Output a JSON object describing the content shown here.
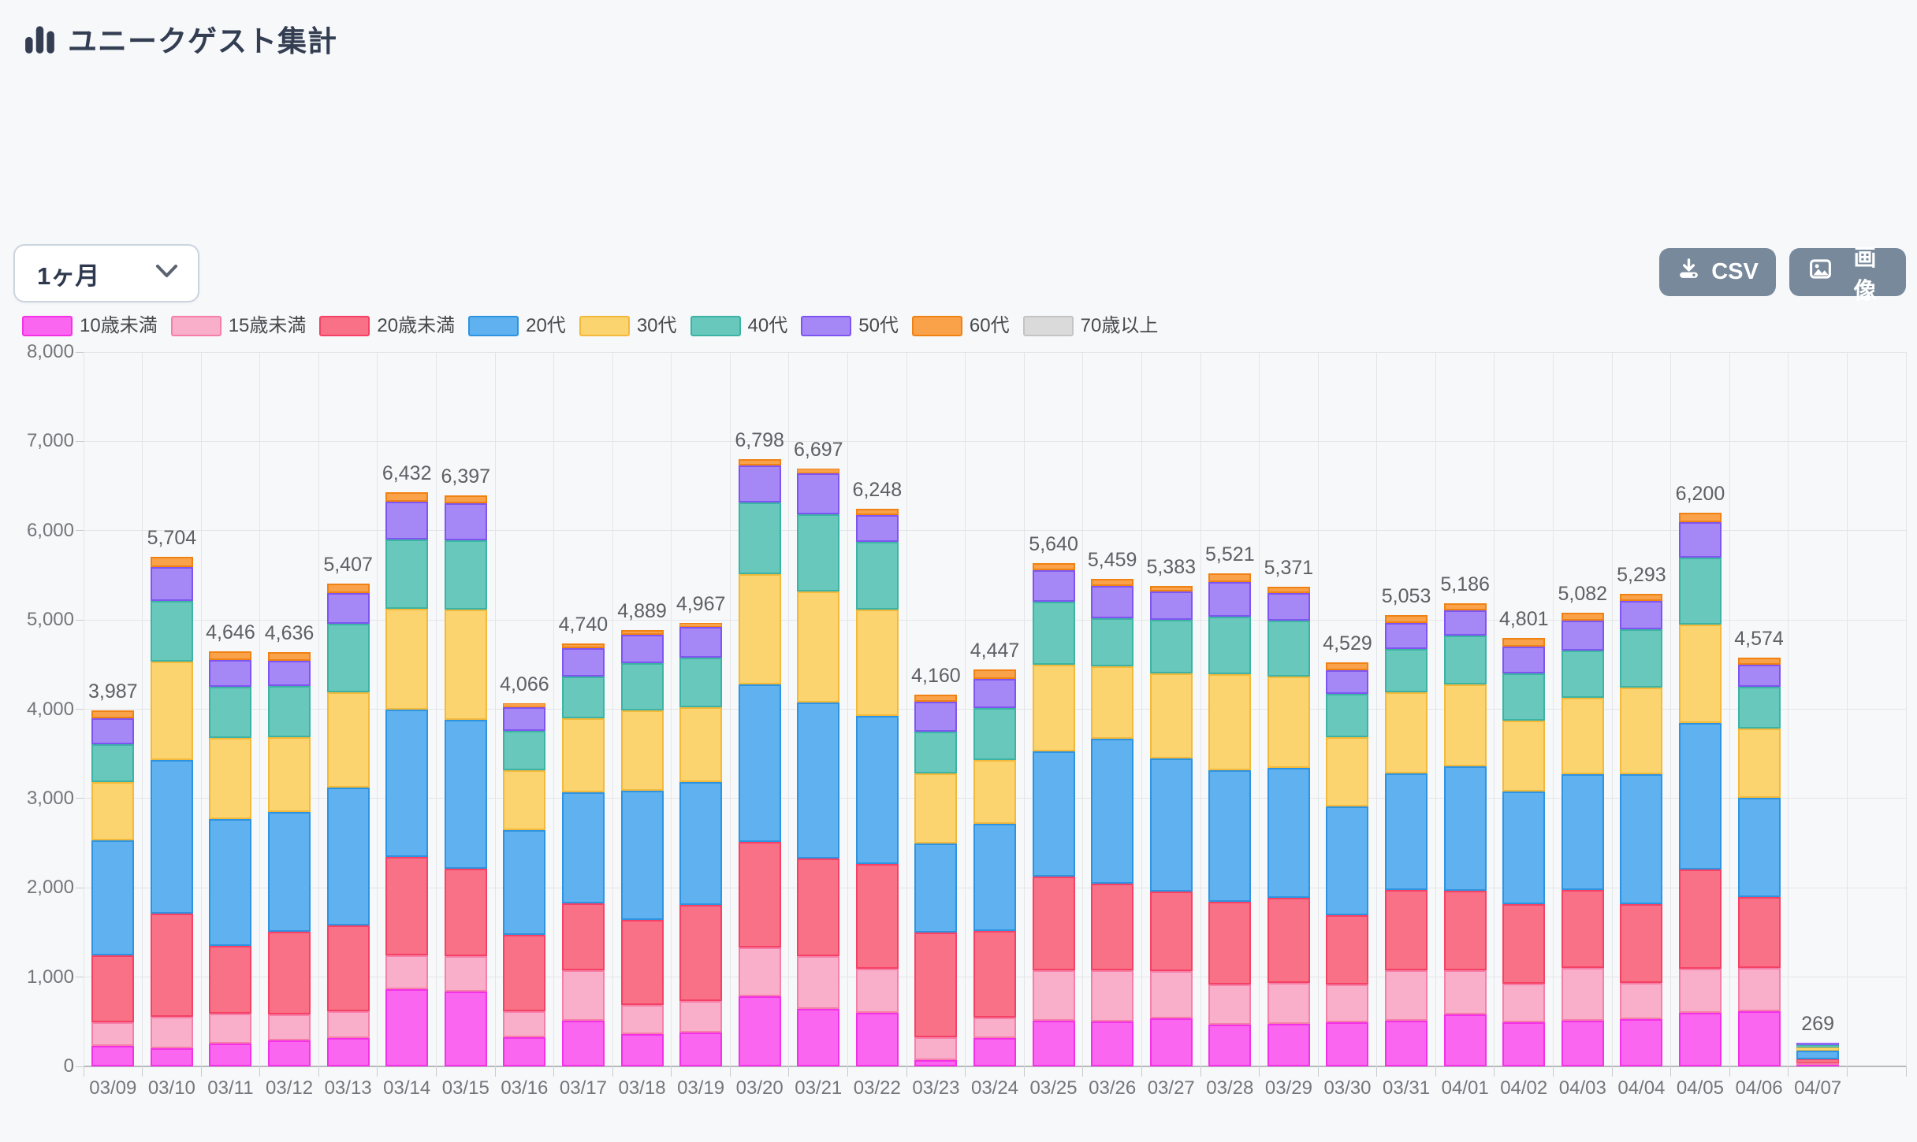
{
  "header": {
    "title": "ユニークゲスト集計"
  },
  "controls": {
    "period_select": {
      "value": "1ヶ月"
    },
    "csv_button": "CSV",
    "image_button": "画像"
  },
  "colors": {
    "page_background": "#f7f8fa",
    "button_background": "#77899b",
    "title_text": "#333e52",
    "gridline": "#e4e5e8",
    "axis_text": "#73767b"
  },
  "chart_data": {
    "type": "bar",
    "stacked": true,
    "grid": true,
    "legend_position": "top",
    "title": "ユニークゲスト集計",
    "xlabel": "",
    "ylabel": "",
    "y_axis": {
      "min": 0,
      "max": 8000,
      "step": 1000
    },
    "categories": [
      "03/09",
      "03/10",
      "03/11",
      "03/12",
      "03/13",
      "03/14",
      "03/15",
      "03/16",
      "03/17",
      "03/18",
      "03/19",
      "03/20",
      "03/21",
      "03/22",
      "03/23",
      "03/24",
      "03/25",
      "03/26",
      "03/27",
      "03/28",
      "03/29",
      "03/30",
      "03/31",
      "04/01",
      "04/02",
      "04/03",
      "04/04",
      "04/05",
      "04/06",
      "04/07"
    ],
    "totals": [
      3987,
      5704,
      4646,
      4636,
      5407,
      6432,
      6397,
      4066,
      4740,
      4889,
      4967,
      6798,
      6697,
      6248,
      4160,
      4447,
      5640,
      5459,
      5383,
      5521,
      5371,
      4529,
      5053,
      5186,
      4801,
      5082,
      5293,
      6200,
      4574,
      269
    ],
    "series": [
      {
        "name": "10歳未満",
        "fill": "#fb66f0",
        "border": "#f331e6",
        "values": [
          230,
          200,
          260,
          295,
          315,
          860,
          835,
          330,
          510,
          360,
          380,
          785,
          645,
          600,
          70,
          315,
          510,
          505,
          535,
          470,
          480,
          490,
          510,
          580,
          490,
          510,
          525,
          600,
          615,
          15
        ]
      },
      {
        "name": "15歳未満",
        "fill": "#f9afc9",
        "border": "#f57fa9",
        "values": [
          260,
          360,
          330,
          290,
          300,
          380,
          400,
          285,
          565,
          330,
          350,
          550,
          590,
          495,
          255,
          230,
          570,
          575,
          535,
          450,
          455,
          430,
          570,
          495,
          440,
          595,
          410,
          495,
          485,
          18
        ]
      },
      {
        "name": "20歳未満",
        "fill": "#f87187",
        "border": "#f54164",
        "values": [
          750,
          1150,
          760,
          925,
          965,
          1110,
          975,
          860,
          755,
          950,
          1075,
          1175,
          1090,
          1175,
          1175,
          970,
          1050,
          965,
          885,
          920,
          950,
          770,
          895,
          895,
          890,
          875,
          885,
          1110,
          795,
          44
        ]
      },
      {
        "name": "20代",
        "fill": "#5fb2ef",
        "border": "#2e93e0",
        "values": [
          1290,
          1720,
          1420,
          1340,
          1545,
          1650,
          1675,
          1170,
          1240,
          1445,
          1380,
          1765,
          1750,
          1655,
          995,
          1200,
          1400,
          1625,
          1495,
          1480,
          1460,
          1225,
          1305,
          1390,
          1255,
          1295,
          1450,
          1640,
          1110,
          100
        ]
      },
      {
        "name": "30代",
        "fill": "#fbd470",
        "border": "#f2b93b",
        "values": [
          650,
          1100,
          910,
          840,
          1065,
          1125,
          1235,
          670,
          830,
          900,
          840,
          1235,
          1245,
          1195,
          785,
          715,
          965,
          810,
          950,
          1075,
          1020,
          770,
          910,
          915,
          800,
          855,
          975,
          1100,
          775,
          32
        ]
      },
      {
        "name": "40代",
        "fill": "#69c8bc",
        "border": "#3cb3a4",
        "values": [
          425,
          680,
          570,
          570,
          770,
          775,
          770,
          440,
          470,
          535,
          550,
          805,
          865,
          750,
          470,
          580,
          705,
          540,
          605,
          645,
          625,
          485,
          485,
          550,
          525,
          530,
          650,
          755,
          470,
          33
        ]
      },
      {
        "name": "50代",
        "fill": "#a687f6",
        "border": "#7e55f0",
        "values": [
          290,
          385,
          300,
          280,
          340,
          425,
          420,
          265,
          315,
          310,
          348,
          415,
          460,
          305,
          335,
          330,
          358,
          360,
          315,
          385,
          315,
          265,
          290,
          285,
          300,
          333,
          320,
          395,
          245,
          27
        ]
      },
      {
        "name": "60代",
        "fill": "#f9a24a",
        "border": "#f08214",
        "values": [
          92,
          109,
          96,
          96,
          107,
          107,
          87,
          46,
          55,
          59,
          44,
          68,
          52,
          73,
          75,
          107,
          82,
          79,
          63,
          96,
          66,
          94,
          88,
          76,
          101,
          89,
          78,
          105,
          79,
          0
        ]
      },
      {
        "name": "70歳以上",
        "fill": "#dadada",
        "border": "#c4c4c4",
        "values": [
          0,
          0,
          0,
          0,
          0,
          0,
          0,
          0,
          0,
          0,
          0,
          0,
          0,
          0,
          0,
          0,
          0,
          0,
          0,
          0,
          0,
          0,
          0,
          0,
          0,
          0,
          0,
          0,
          0,
          0
        ]
      }
    ]
  }
}
